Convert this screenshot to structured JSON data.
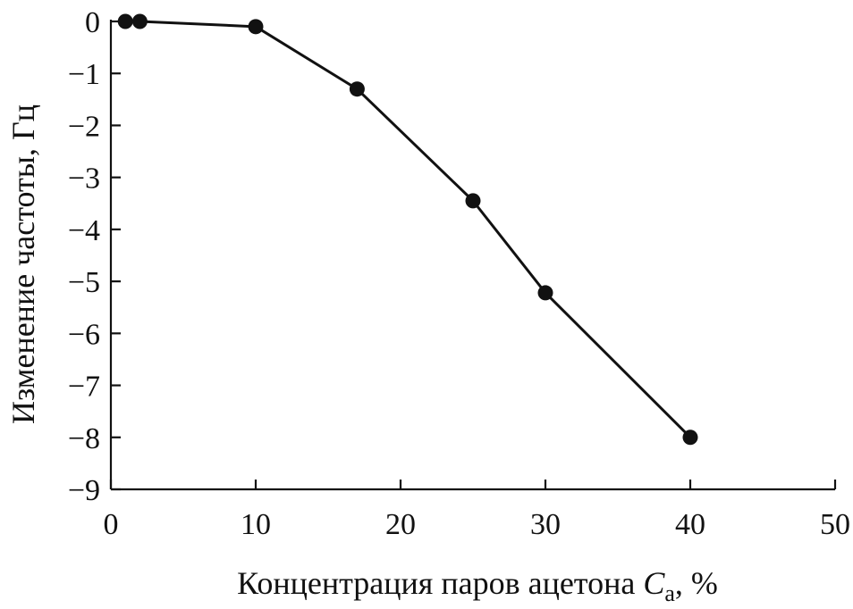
{
  "chart_data": {
    "type": "line",
    "title": "",
    "xlabel": {
      "main": "Концентрация паров ацетона ",
      "var": "C",
      "sub": "а",
      "unit": ", %"
    },
    "ylabel": "Изменение частоты, Гц",
    "xlim": [
      0,
      50
    ],
    "ylim": [
      -9,
      0
    ],
    "x_ticks": [
      0,
      10,
      20,
      30,
      40,
      50
    ],
    "y_ticks": [
      0,
      -1,
      -2,
      -3,
      -4,
      -5,
      -6,
      -7,
      -8,
      -9
    ],
    "x_tick_labels": [
      "0",
      "10",
      "20",
      "30",
      "40",
      "50"
    ],
    "y_tick_labels": [
      "0",
      "−1",
      "−2",
      "−3",
      "−4",
      "−5",
      "−6",
      "−7",
      "−8",
      "−9"
    ],
    "grid": false,
    "colors": {
      "line": "#111111",
      "marker": "#111111"
    },
    "series": [
      {
        "x": [
          1,
          2,
          10,
          17,
          25,
          30,
          40
        ],
        "y": [
          0,
          0,
          -0.1,
          -1.3,
          -3.45,
          -5.22,
          -8.0
        ]
      }
    ]
  }
}
